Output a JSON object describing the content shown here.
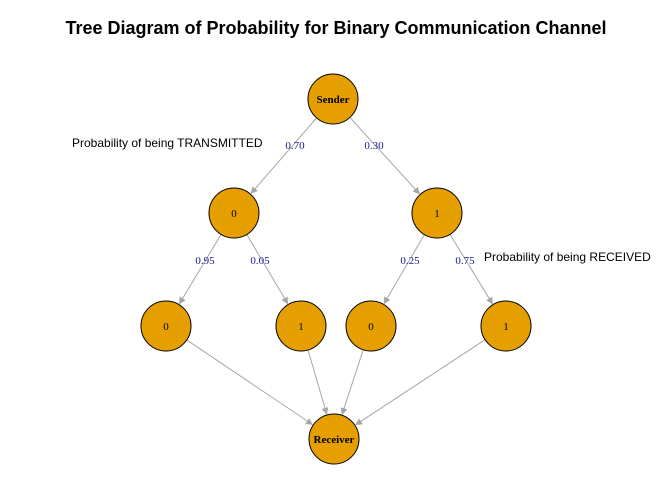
{
  "title": "Tree Diagram of Probability for Binary Communication Channel",
  "annotations": {
    "transmitted": "Probability of being TRANSMITTED",
    "received": "Probability of being RECEIVED"
  },
  "colors": {
    "node_fill": "#E69F00",
    "edge": "#a6a6a6",
    "edge_label": "#1a1a8c"
  },
  "nodes": [
    {
      "id": "sender",
      "label": "Sender"
    },
    {
      "id": "t0",
      "label": "0"
    },
    {
      "id": "t1",
      "label": "1"
    },
    {
      "id": "r00",
      "label": "0"
    },
    {
      "id": "r01",
      "label": "1"
    },
    {
      "id": "r10",
      "label": "0"
    },
    {
      "id": "r11",
      "label": "1"
    },
    {
      "id": "receiver",
      "label": "Receiver"
    }
  ],
  "edges": [
    {
      "from": "sender",
      "to": "t0",
      "label": "0.70"
    },
    {
      "from": "sender",
      "to": "t1",
      "label": "0.30"
    },
    {
      "from": "t0",
      "to": "r00",
      "label": "0.95"
    },
    {
      "from": "t0",
      "to": "r01",
      "label": "0.05"
    },
    {
      "from": "t1",
      "to": "r10",
      "label": "0.25"
    },
    {
      "from": "t1",
      "to": "r11",
      "label": "0.75"
    },
    {
      "from": "r00",
      "to": "receiver",
      "label": ""
    },
    {
      "from": "r01",
      "to": "receiver",
      "label": ""
    },
    {
      "from": "r10",
      "to": "receiver",
      "label": ""
    },
    {
      "from": "r11",
      "to": "receiver",
      "label": ""
    }
  ]
}
